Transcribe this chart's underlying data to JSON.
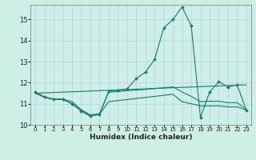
{
  "xlabel": "Humidex (Indice chaleur)",
  "background_color": "#ceeee8",
  "grid_color": "#aed8d2",
  "line_color": "#1a7a6e",
  "xlim": [
    -0.5,
    23.5
  ],
  "ylim": [
    10.0,
    15.7
  ],
  "yticks": [
    10,
    11,
    12,
    13,
    14,
    15
  ],
  "xticks": [
    0,
    1,
    2,
    3,
    4,
    5,
    6,
    7,
    8,
    9,
    10,
    11,
    12,
    13,
    14,
    15,
    16,
    17,
    18,
    19,
    20,
    21,
    22,
    23
  ],
  "lines": [
    {
      "x": [
        0,
        1,
        2,
        3,
        4,
        5,
        6,
        7,
        8,
        9,
        10,
        11,
        12,
        13,
        14,
        15,
        16,
        17,
        18,
        19,
        20,
        21,
        22,
        23
      ],
      "y": [
        11.5,
        11.3,
        11.2,
        11.2,
        11.0,
        10.7,
        10.45,
        10.5,
        11.1,
        11.15,
        11.2,
        11.25,
        11.3,
        11.35,
        11.4,
        11.45,
        11.1,
        11.0,
        10.9,
        10.9,
        10.9,
        10.85,
        10.85,
        10.7
      ],
      "marker": null
    },
    {
      "x": [
        0,
        1,
        2,
        3,
        4,
        5,
        6,
        7,
        8,
        9,
        10,
        11,
        12,
        13,
        14,
        15,
        16,
        17,
        18,
        19,
        20,
        21,
        22,
        23
      ],
      "y": [
        11.55,
        11.32,
        11.22,
        11.22,
        11.1,
        10.72,
        10.47,
        10.52,
        11.55,
        11.58,
        11.62,
        11.65,
        11.68,
        11.72,
        11.76,
        11.8,
        11.56,
        11.35,
        11.1,
        11.12,
        11.12,
        11.05,
        11.05,
        10.73
      ],
      "marker": null
    },
    {
      "x": [
        0,
        23
      ],
      "y": [
        11.5,
        11.9
      ],
      "marker": null
    },
    {
      "x": [
        0,
        1,
        2,
        3,
        4,
        5,
        6,
        7,
        8,
        9,
        10,
        11,
        12,
        13,
        14,
        15,
        16,
        17,
        18,
        19,
        20,
        21,
        22,
        23
      ],
      "y": [
        11.55,
        11.32,
        11.22,
        11.22,
        11.0,
        10.65,
        10.4,
        10.5,
        11.6,
        11.65,
        11.7,
        12.2,
        12.5,
        13.1,
        14.6,
        15.0,
        15.6,
        14.7,
        10.35,
        11.55,
        12.05,
        11.8,
        11.9,
        10.7
      ],
      "marker": "D",
      "markersize": 2.0
    }
  ]
}
